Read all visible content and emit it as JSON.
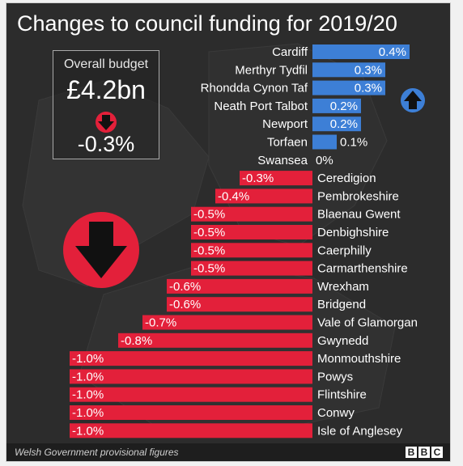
{
  "title": "Changes to council funding for 2019/20",
  "budget": {
    "label": "Overall budget",
    "value": "£4.2bn",
    "change": "-0.3%"
  },
  "source": "Welsh Government provisional figures",
  "logo": {
    "blocks": [
      "B",
      "B",
      "C"
    ]
  },
  "colors": {
    "positive": "#3d7fd6",
    "negative": "#e3203a",
    "background": "#2c2c2c",
    "text": "#ffffff"
  },
  "icons": {
    "up": "up-arrow-icon",
    "down": "down-arrow-icon"
  },
  "chart_data": {
    "type": "bar",
    "orientation": "horizontal",
    "unit": "%",
    "categories": [
      "Cardiff",
      "Merthyr Tydfil",
      "Rhondda Cynon Taf",
      "Neath Port Talbot",
      "Newport",
      "Torfaen",
      "Swansea",
      "Ceredigion",
      "Pembrokeshire",
      "Blaenau Gwent",
      "Denbighshire",
      "Caerphilly",
      "Carmarthenshire",
      "Wrexham",
      "Bridgend",
      "Vale of Glamorgan",
      "Gwynedd",
      "Monmouthshire",
      "Powys",
      "Flintshire",
      "Conwy",
      "Isle of Anglesey"
    ],
    "values": [
      0.4,
      0.3,
      0.3,
      0.2,
      0.2,
      0.1,
      0,
      -0.3,
      -0.4,
      -0.5,
      -0.5,
      -0.5,
      -0.5,
      -0.6,
      -0.6,
      -0.7,
      -0.8,
      -1.0,
      -1.0,
      -1.0,
      -1.0,
      -1.0
    ],
    "labels": [
      "0.4%",
      "0.3%",
      "0.3%",
      "0.2%",
      "0.2%",
      "0.1%",
      "0%",
      "-0.3%",
      "-0.4%",
      "-0.5%",
      "-0.5%",
      "-0.5%",
      "-0.5%",
      "-0.6%",
      "-0.6%",
      "-0.7%",
      "-0.8%",
      "-1.0%",
      "-1.0%",
      "-1.0%",
      "-1.0%",
      "-1.0%"
    ]
  }
}
